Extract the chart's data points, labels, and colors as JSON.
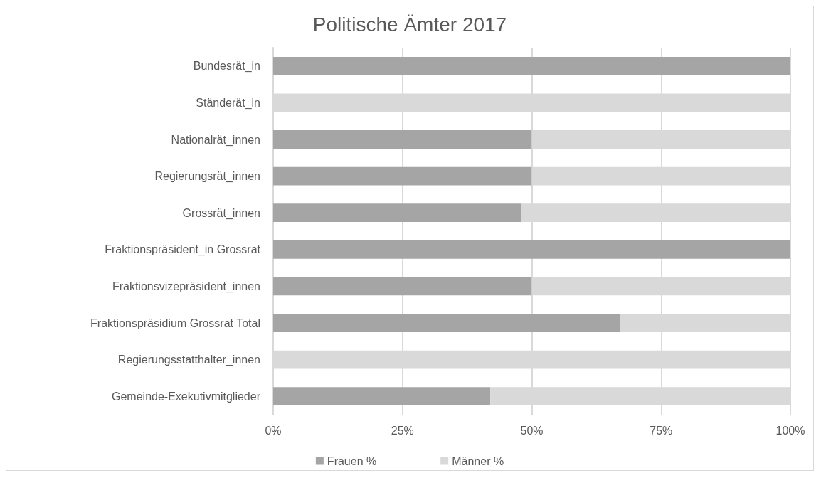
{
  "chart_data": {
    "type": "bar",
    "title": "Politische Ämter 2017",
    "orientation": "horizontal",
    "stacked": true,
    "categories": [
      "Bundesrät_in",
      "Ständerät_in",
      "Nationalrät_innen",
      "Regierungsrät_innen",
      "Grossrät_innen",
      "Fraktionspräsident_in Grossrat",
      "Fraktionsvizepräsident_innen",
      "Fraktionspräsidium Grossrat Total",
      "Regierungsstatthalter_innen",
      "Gemeinde-Exekutivmitglieder"
    ],
    "series": [
      {
        "name": "Frauen %",
        "color": "#a5a5a5",
        "values": [
          100,
          0,
          50,
          50,
          48,
          100,
          50,
          67,
          0,
          42
        ]
      },
      {
        "name": "Männer %",
        "color": "#d9d9d9",
        "values": [
          0,
          100,
          50,
          50,
          52,
          0,
          50,
          33,
          100,
          58
        ]
      }
    ],
    "xlim": [
      0,
      100
    ],
    "xticks": [
      {
        "value": 0,
        "label": "0%"
      },
      {
        "value": 25,
        "label": "25%"
      },
      {
        "value": 50,
        "label": "50%"
      },
      {
        "value": 75,
        "label": "75%"
      },
      {
        "value": 100,
        "label": "100%"
      }
    ],
    "grid": "x",
    "legend": "bottom"
  }
}
